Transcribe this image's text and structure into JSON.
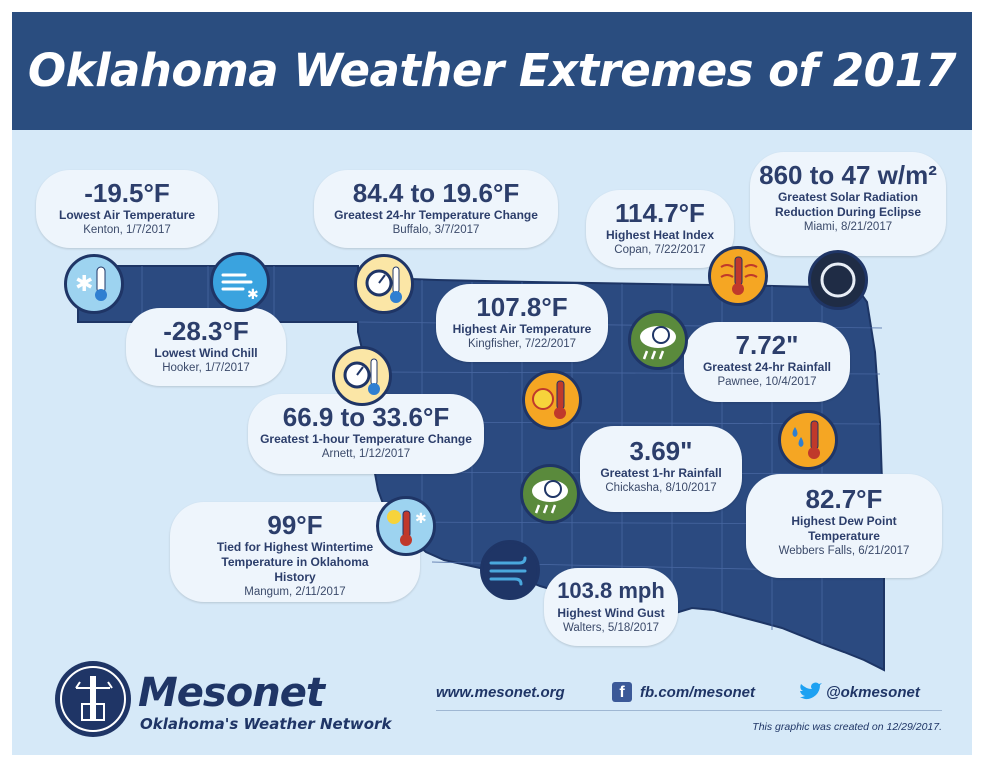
{
  "header": {
    "title": "Oklahoma Weather Extremes of 2017"
  },
  "extremes": [
    {
      "value": "-19.5°F",
      "title": "Lowest Air Temperature",
      "location": "Kenton, 1/7/2017",
      "icon": "snowflake-thermometer-icon"
    },
    {
      "value": "-28.3°F",
      "title": "Lowest Wind Chill",
      "location": "Hooker, 1/7/2017",
      "icon": "wind-snow-icon"
    },
    {
      "value": "84.4 to 19.6°F",
      "title": "Greatest 24-hr Temperature Change",
      "location": "Buffalo, 3/7/2017",
      "icon": "gauge-thermometer-icon"
    },
    {
      "value": "114.7°F",
      "title": "Highest Heat Index",
      "location": "Copan, 7/22/2017",
      "icon": "heat-thermometer-icon"
    },
    {
      "value": "860 to 47 w/m²",
      "title": "Greatest Solar Radiation Reduction During Eclipse",
      "location": "Miami, 8/21/2017",
      "icon": "eclipse-icon"
    },
    {
      "value": "107.8°F",
      "title": "Highest Air Temperature",
      "location": "Kingfisher, 7/22/2017",
      "icon": "sun-thermometer-icon"
    },
    {
      "value": "7.72\"",
      "title": "Greatest 24-hr Rainfall",
      "location": "Pawnee, 10/4/2017",
      "icon": "rain-gauge-icon"
    },
    {
      "value": "66.9 to 33.6°F",
      "title": "Greatest 1-hour Temperature Change",
      "location": "Arnett, 1/12/2017",
      "icon": "gauge-thermometer-icon"
    },
    {
      "value": "3.69\"",
      "title": "Greatest 1-hr Rainfall",
      "location": "Chickasha, 8/10/2017",
      "icon": "rain-gauge-icon"
    },
    {
      "value": "82.7°F",
      "title": "Highest Dew Point Temperature",
      "location": "Webbers Falls, 6/21/2017",
      "icon": "dewpoint-thermometer-icon"
    },
    {
      "value": "99°F",
      "title": "Tied for Highest Wintertime Temperature in Oklahoma History",
      "location": "Mangum, 2/11/2017",
      "icon": "sun-snow-thermometer-icon"
    },
    {
      "value": "103.8 mph",
      "title": "Highest Wind Gust",
      "location": "Walters, 5/18/2017",
      "icon": "wind-icon"
    }
  ],
  "footer": {
    "brand": "Mesonet",
    "tagline": "Oklahoma's Weather Network",
    "website": "www.mesonet.org",
    "facebook": "fb.com/mesonet",
    "twitter": "@okmesonet",
    "credit": "This graphic was created on 12/29/2017."
  },
  "colors": {
    "banner": "#2a4d7f",
    "map": "#2b4a80",
    "background": "#d6e9f8",
    "text": "#2c3e6b",
    "icon_blue": "#4aa8dd",
    "icon_orange": "#f5a623",
    "icon_green": "#5a8a3c"
  }
}
